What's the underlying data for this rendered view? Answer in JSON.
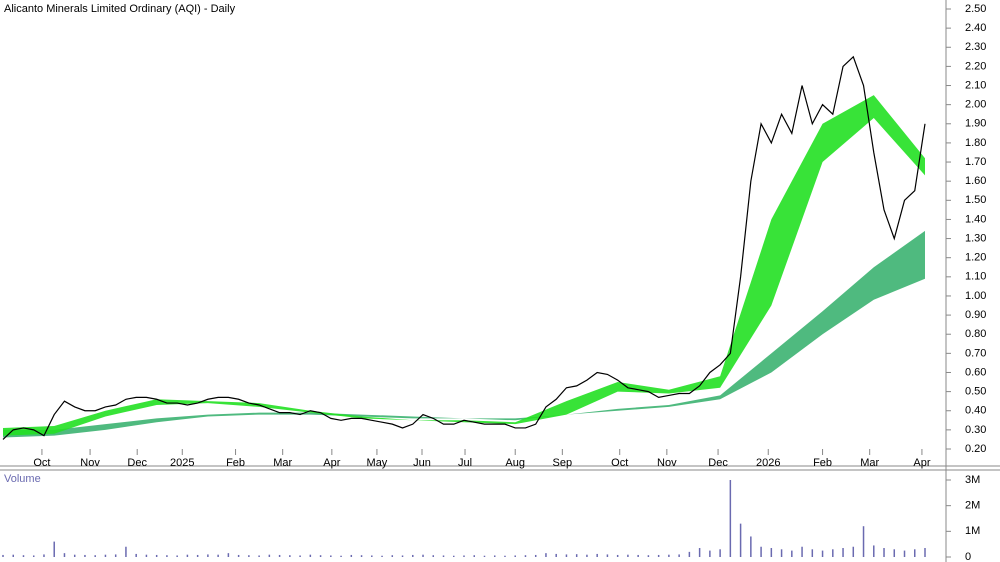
{
  "chart_data": [
    {
      "type": "line",
      "title": "Alicanto Minerals Limited Ordinary (AQI) - Daily",
      "xlim": [
        0,
        90
      ],
      "xticks": [
        {
          "value": 3.8,
          "label": "Oct"
        },
        {
          "value": 8.5,
          "label": "Nov"
        },
        {
          "value": 13.1,
          "label": "Dec"
        },
        {
          "value": 17.5,
          "label": "2025"
        },
        {
          "value": 22.7,
          "label": "Feb"
        },
        {
          "value": 27.3,
          "label": "Mar"
        },
        {
          "value": 32.1,
          "label": "Apr"
        },
        {
          "value": 36.5,
          "label": "May"
        },
        {
          "value": 40.9,
          "label": "Jun"
        },
        {
          "value": 45.1,
          "label": "Jul"
        },
        {
          "value": 50.0,
          "label": "Aug"
        },
        {
          "value": 54.6,
          "label": "Sep"
        },
        {
          "value": 60.2,
          "label": "Oct"
        },
        {
          "value": 64.8,
          "label": "Nov"
        },
        {
          "value": 69.8,
          "label": "Dec"
        },
        {
          "value": 74.7,
          "label": "2026"
        },
        {
          "value": 80.0,
          "label": "Feb"
        },
        {
          "value": 84.6,
          "label": "Mar"
        },
        {
          "value": 89.7,
          "label": "Apr"
        }
      ],
      "ylim": [
        0.2,
        2.5
      ],
      "yticks": [
        {
          "value": 0.2,
          "label": "0.20"
        },
        {
          "value": 0.3,
          "label": "0.30"
        },
        {
          "value": 0.4,
          "label": "0.40"
        },
        {
          "value": 0.5,
          "label": "0.50"
        },
        {
          "value": 0.6,
          "label": "0.60"
        },
        {
          "value": 0.7,
          "label": "0.70"
        },
        {
          "value": 0.8,
          "label": "0.80"
        },
        {
          "value": 0.9,
          "label": "0.90"
        },
        {
          "value": 1.0,
          "label": "1.00"
        },
        {
          "value": 1.1,
          "label": "1.10"
        },
        {
          "value": 1.2,
          "label": "1.20"
        },
        {
          "value": 1.3,
          "label": "1.30"
        },
        {
          "value": 1.4,
          "label": "1.40"
        },
        {
          "value": 1.5,
          "label": "1.50"
        },
        {
          "value": 1.6,
          "label": "1.60"
        },
        {
          "value": 1.7,
          "label": "1.70"
        },
        {
          "value": 1.8,
          "label": "1.80"
        },
        {
          "value": 1.9,
          "label": "1.90"
        },
        {
          "value": 2.0,
          "label": "2.00"
        },
        {
          "value": 2.1,
          "label": "2.10"
        },
        {
          "value": 2.2,
          "label": "2.20"
        },
        {
          "value": 2.3,
          "label": "2.30"
        },
        {
          "value": 2.4,
          "label": "2.40"
        },
        {
          "value": 2.5,
          "label": "2.50"
        }
      ],
      "bands": [
        {
          "color": "#3cb371",
          "x": [
            0,
            5,
            10,
            15,
            20,
            25,
            30,
            35,
            40,
            45,
            50,
            55,
            60,
            65,
            70,
            75,
            80,
            85,
            90
          ],
          "upper": [
            0.3,
            0.3,
            0.33,
            0.36,
            0.38,
            0.39,
            0.39,
            0.38,
            0.37,
            0.36,
            0.36,
            0.38,
            0.41,
            0.43,
            0.48,
            0.7,
            0.92,
            1.15,
            1.34
          ],
          "lower": [
            0.26,
            0.27,
            0.3,
            0.34,
            0.37,
            0.38,
            0.38,
            0.37,
            0.36,
            0.36,
            0.35,
            0.38,
            0.4,
            0.42,
            0.46,
            0.6,
            0.8,
            0.98,
            1.09
          ]
        },
        {
          "color": "#22e022",
          "x": [
            0,
            5,
            10,
            15,
            20,
            25,
            30,
            35,
            40,
            45,
            50,
            55,
            60,
            65,
            70,
            75,
            80,
            85,
            90
          ],
          "upper": [
            0.31,
            0.32,
            0.4,
            0.46,
            0.45,
            0.44,
            0.4,
            0.37,
            0.35,
            0.35,
            0.34,
            0.45,
            0.55,
            0.51,
            0.58,
            1.4,
            1.9,
            2.05,
            1.72
          ],
          "lower": [
            0.27,
            0.28,
            0.37,
            0.43,
            0.44,
            0.42,
            0.39,
            0.36,
            0.35,
            0.34,
            0.33,
            0.38,
            0.5,
            0.49,
            0.52,
            0.95,
            1.7,
            1.93,
            1.63
          ]
        }
      ],
      "color": "#000000",
      "values": [
        0.25,
        0.3,
        0.31,
        0.3,
        0.27,
        0.38,
        0.45,
        0.42,
        0.4,
        0.4,
        0.42,
        0.43,
        0.46,
        0.47,
        0.47,
        0.46,
        0.44,
        0.44,
        0.43,
        0.44,
        0.46,
        0.47,
        0.47,
        0.46,
        0.44,
        0.43,
        0.41,
        0.39,
        0.39,
        0.38,
        0.4,
        0.39,
        0.36,
        0.35,
        0.36,
        0.36,
        0.35,
        0.34,
        0.33,
        0.31,
        0.33,
        0.38,
        0.36,
        0.33,
        0.33,
        0.35,
        0.34,
        0.33,
        0.33,
        0.33,
        0.31,
        0.31,
        0.33,
        0.42,
        0.46,
        0.52,
        0.53,
        0.56,
        0.6,
        0.59,
        0.56,
        0.52,
        0.51,
        0.5,
        0.47,
        0.48,
        0.49,
        0.49,
        0.53,
        0.6,
        0.64,
        0.7,
        1.1,
        1.6,
        1.9,
        1.8,
        1.95,
        1.85,
        2.1,
        1.9,
        2.0,
        1.95,
        2.2,
        2.25,
        2.1,
        1.75,
        1.45,
        1.3,
        1.5,
        1.55,
        1.9
      ]
    },
    {
      "type": "bar",
      "title": "Volume",
      "xlim": [
        0,
        90
      ],
      "ylim": [
        0,
        3000000
      ],
      "yticks": [
        {
          "value": 0,
          "label": "0"
        },
        {
          "value": 1000000,
          "label": "1M"
        },
        {
          "value": 2000000,
          "label": "2M"
        },
        {
          "value": 3000000,
          "label": "3M"
        }
      ],
      "color": "#6a6ab0",
      "values": [
        80000,
        90000,
        70000,
        60000,
        100000,
        600000,
        150000,
        90000,
        80000,
        70000,
        90000,
        100000,
        400000,
        120000,
        90000,
        80000,
        70000,
        60000,
        90000,
        80000,
        100000,
        90000,
        150000,
        80000,
        70000,
        60000,
        90000,
        80000,
        70000,
        60000,
        90000,
        70000,
        60000,
        50000,
        80000,
        70000,
        60000,
        50000,
        70000,
        60000,
        80000,
        90000,
        70000,
        60000,
        50000,
        60000,
        70000,
        50000,
        60000,
        50000,
        60000,
        70000,
        80000,
        150000,
        120000,
        100000,
        110000,
        90000,
        120000,
        100000,
        80000,
        90000,
        80000,
        70000,
        80000,
        90000,
        100000,
        200000,
        350000,
        250000,
        300000,
        3000000,
        1300000,
        800000,
        400000,
        350000,
        300000,
        250000,
        400000,
        300000,
        250000,
        300000,
        350000,
        400000,
        1200000,
        450000,
        350000,
        300000,
        250000,
        300000,
        350000
      ]
    }
  ]
}
